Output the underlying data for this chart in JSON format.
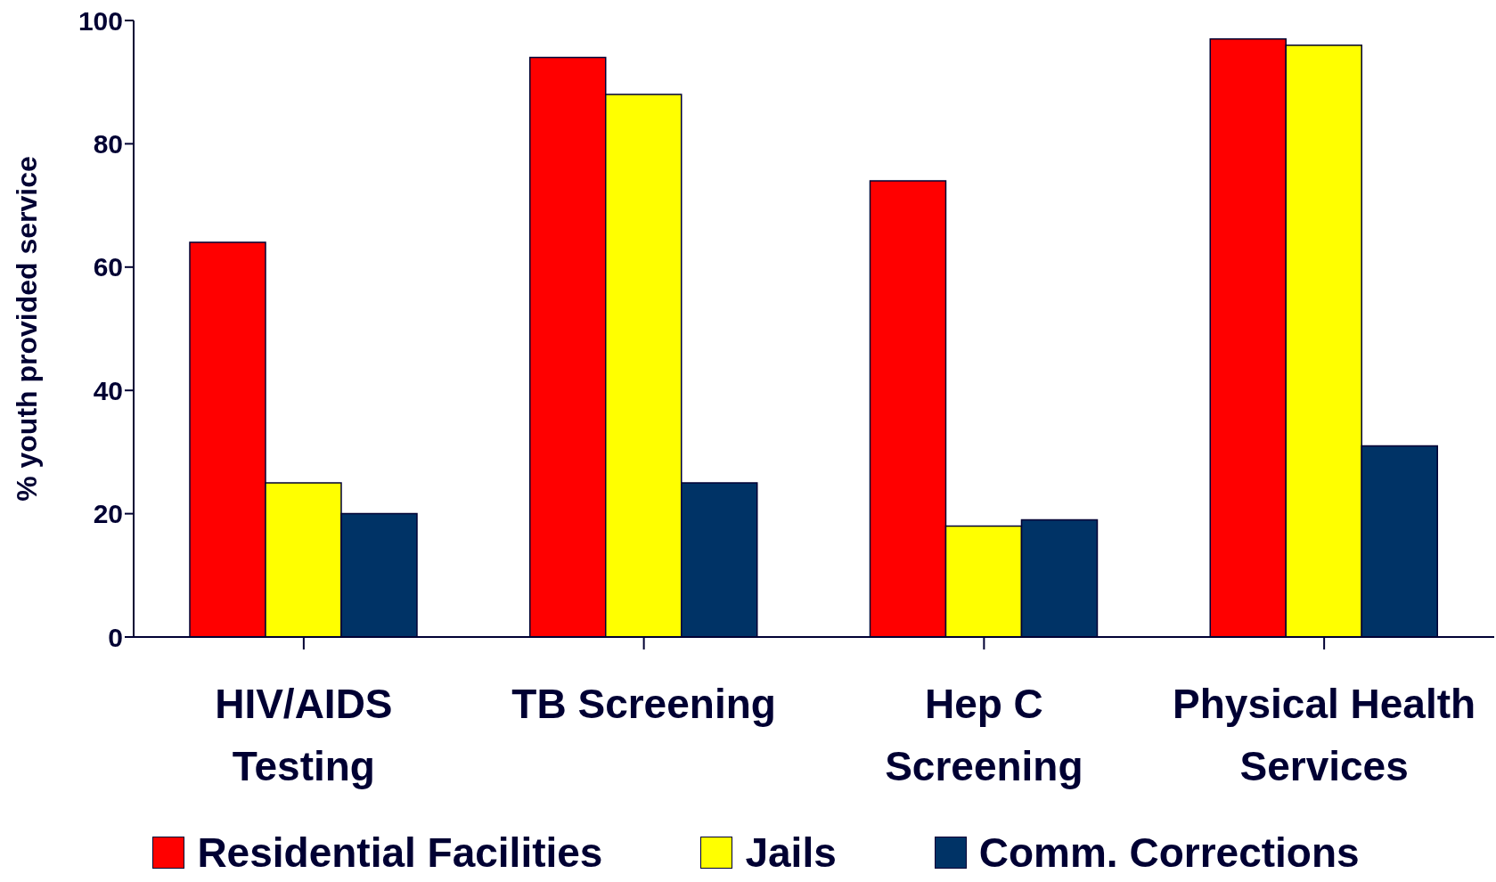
{
  "chart_data": {
    "type": "bar",
    "ylabel": "% youth provided service",
    "categories": [
      "HIV/AIDS Testing",
      "TB Screening",
      "Hep C Screening",
      "Physical Health Services"
    ],
    "series": [
      {
        "name": "Residential Facilities",
        "color": "#ff0000",
        "values": [
          64,
          94,
          74,
          97
        ]
      },
      {
        "name": "Jails",
        "color": "#ffff00",
        "values": [
          25,
          88,
          18,
          96
        ]
      },
      {
        "name": "Comm. Corrections",
        "color": "#003366",
        "values": [
          20,
          25,
          19,
          31
        ]
      }
    ],
    "ylim": [
      0,
      100
    ],
    "yticks": [
      0,
      20,
      40,
      60,
      80,
      100
    ],
    "grid": false,
    "legend": "bottom"
  }
}
